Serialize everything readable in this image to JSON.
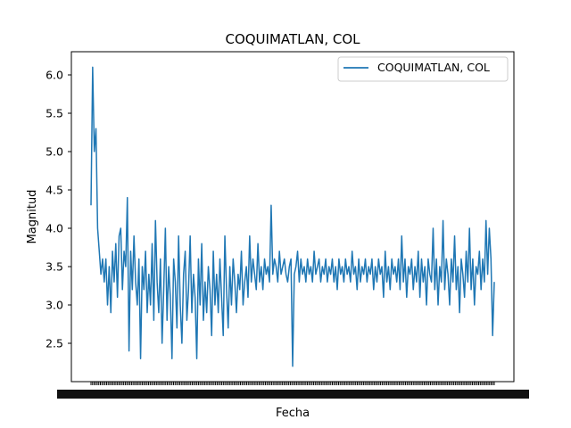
{
  "chart_data": {
    "type": "line",
    "title": "COQUIMATLAN, COL",
    "xlabel": "Fecha",
    "ylabel": "Magnitud",
    "ylim": [
      2.2,
      6.1
    ],
    "yticks": [
      "2.5",
      "3.0",
      "3.5",
      "4.0",
      "4.5",
      "5.0",
      "5.5",
      "6.0"
    ],
    "ytick_values": [
      2.5,
      3.0,
      3.5,
      4.0,
      4.5,
      5.0,
      5.5,
      6.0
    ],
    "x_tick_labels_illegible": true,
    "grid": false,
    "legend_position": "top-right",
    "color": "#1f77b4",
    "series": [
      {
        "name": "COQUIMATLAN, COL",
        "values": [
          4.3,
          6.1,
          5.0,
          5.3,
          4.0,
          3.7,
          3.4,
          3.6,
          3.3,
          3.6,
          3.0,
          3.5,
          2.9,
          3.7,
          3.3,
          3.8,
          3.1,
          3.9,
          4.0,
          3.2,
          3.7,
          3.5,
          4.4,
          2.4,
          3.7,
          3.2,
          3.9,
          3.3,
          3.0,
          3.6,
          2.3,
          3.5,
          3.2,
          3.7,
          2.9,
          3.4,
          3.0,
          3.8,
          2.8,
          4.1,
          3.3,
          2.9,
          3.6,
          2.5,
          3.2,
          4.0,
          2.8,
          3.5,
          3.1,
          2.3,
          3.6,
          3.3,
          2.7,
          3.9,
          3.0,
          2.5,
          3.4,
          3.7,
          2.8,
          3.2,
          3.9,
          2.9,
          3.4,
          3.1,
          2.3,
          3.6,
          3.0,
          3.8,
          2.8,
          3.3,
          2.9,
          3.5,
          3.2,
          2.6,
          3.7,
          3.0,
          3.4,
          2.9,
          3.6,
          3.1,
          2.6,
          3.9,
          3.2,
          2.7,
          3.5,
          3.0,
          3.6,
          3.3,
          2.9,
          3.4,
          3.2,
          3.7,
          3.0,
          3.3,
          3.5,
          3.1,
          3.9,
          3.3,
          3.6,
          3.4,
          3.2,
          3.8,
          3.3,
          3.5,
          3.2,
          3.6,
          3.4,
          3.5,
          3.3,
          4.3,
          3.4,
          3.6,
          3.5,
          3.3,
          3.7,
          3.4,
          3.5,
          3.6,
          3.4,
          3.3,
          3.5,
          3.6,
          2.2,
          3.4,
          3.5,
          3.7,
          3.3,
          3.6,
          3.4,
          3.5,
          3.3,
          3.6,
          3.4,
          3.5,
          3.3,
          3.7,
          3.4,
          3.5,
          3.6,
          3.3,
          3.5,
          3.4,
          3.6,
          3.3,
          3.5,
          3.4,
          3.6,
          3.3,
          3.5,
          3.2,
          3.6,
          3.4,
          3.5,
          3.3,
          3.6,
          3.4,
          3.5,
          3.3,
          3.7,
          3.4,
          3.5,
          3.2,
          3.6,
          3.3,
          3.5,
          3.4,
          3.6,
          3.3,
          3.5,
          3.4,
          3.6,
          3.2,
          3.5,
          3.3,
          3.6,
          3.4,
          3.5,
          3.1,
          3.7,
          3.3,
          3.5,
          3.2,
          3.6,
          3.4,
          3.5,
          3.3,
          3.6,
          3.2,
          3.9,
          3.3,
          3.6,
          3.1,
          3.5,
          3.4,
          3.6,
          3.2,
          3.5,
          3.3,
          3.7,
          3.1,
          3.6,
          3.3,
          3.5,
          3.0,
          3.6,
          3.4,
          3.3,
          4.0,
          3.2,
          3.6,
          3.0,
          3.5,
          3.3,
          4.1,
          3.2,
          3.6,
          3.4,
          3.0,
          3.6,
          3.3,
          3.9,
          3.2,
          3.5,
          2.9,
          3.6,
          3.4,
          3.1,
          3.7,
          3.3,
          4.0,
          3.2,
          3.6,
          3.0,
          3.5,
          3.4,
          3.7,
          3.2,
          3.6,
          3.3,
          4.1,
          3.4,
          4.0,
          3.6,
          2.6,
          3.3
        ]
      }
    ]
  }
}
